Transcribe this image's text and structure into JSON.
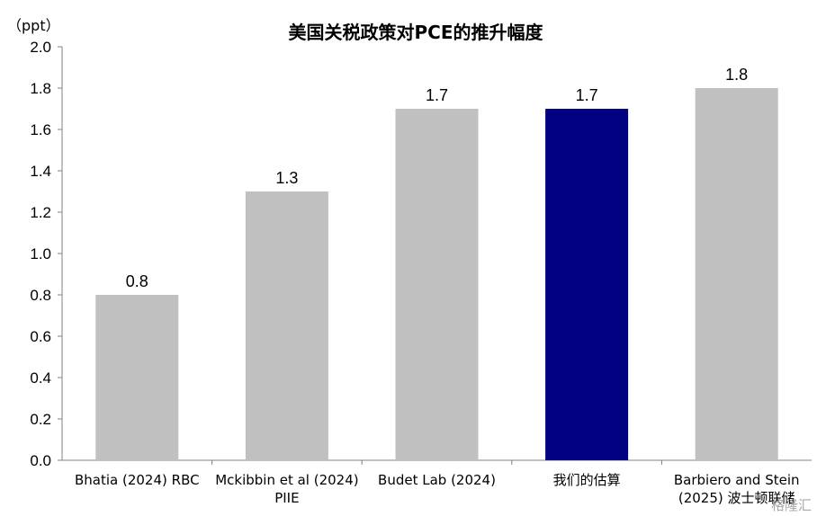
{
  "chart_data": {
    "type": "bar",
    "title": "美国关税政策对PCE的推升幅度",
    "ylabel": "（ppt）",
    "xlabel": "",
    "ylim": [
      0,
      2.0
    ],
    "yticks": [
      "0.0",
      "0.2",
      "0.4",
      "0.6",
      "0.8",
      "1.0",
      "1.2",
      "1.4",
      "1.6",
      "1.8",
      "2.0"
    ],
    "categories": [
      [
        "Bhatia (2024) RBC"
      ],
      [
        "Mckibbin et al (2024)",
        "PIIE"
      ],
      [
        "Budet Lab (2024)"
      ],
      [
        "我们的估算"
      ],
      [
        "Barbiero and Stein",
        "(2025) 波士顿联储"
      ]
    ],
    "values": [
      0.8,
      1.3,
      1.7,
      1.7,
      1.8
    ],
    "value_labels": [
      "0.8",
      "1.3",
      "1.7",
      "1.7",
      "1.8"
    ],
    "highlight_index": 3,
    "colors": {
      "default": "#c0c0c0",
      "highlight": "#000080",
      "axis": "#808080"
    },
    "grid": false
  },
  "watermark": "格隆汇"
}
